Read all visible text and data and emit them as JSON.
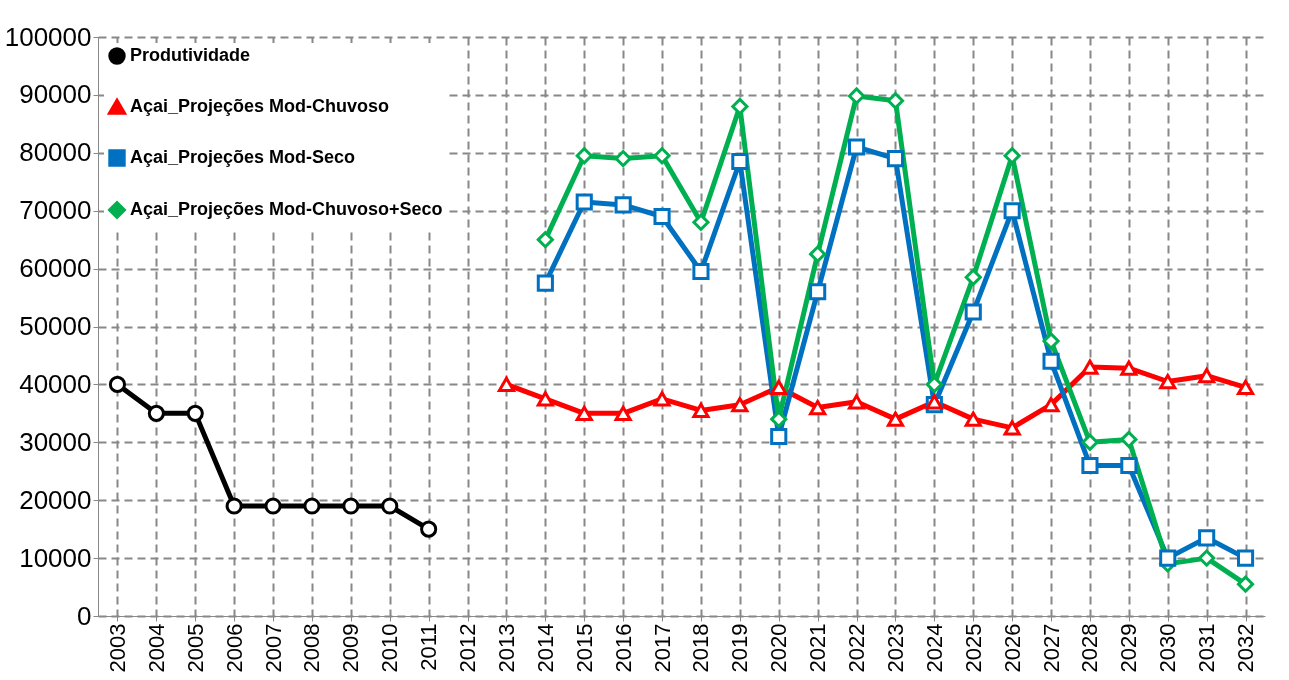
{
  "chart_data": {
    "type": "line",
    "categories": [
      "2003",
      "2004",
      "2005",
      "2006",
      "2007",
      "2008",
      "2009",
      "2010",
      "2011",
      "2012",
      "2013",
      "2014",
      "2015",
      "2016",
      "2017",
      "2018",
      "2019",
      "2020",
      "2021",
      "2022",
      "2023",
      "2024",
      "2025",
      "2026",
      "2027",
      "2028",
      "2029",
      "2030",
      "2031",
      "2032"
    ],
    "series": [
      {
        "name": "Produtividade",
        "color": "#000000",
        "marker": "circle",
        "values": [
          40000,
          35000,
          35000,
          19000,
          19000,
          19000,
          19000,
          19000,
          15000,
          null,
          null,
          null,
          null,
          null,
          null,
          null,
          null,
          null,
          null,
          null,
          null,
          null,
          null,
          null,
          null,
          null,
          null,
          null,
          null,
          null
        ]
      },
      {
        "name": "Açai_Projeções Mod-Chuvoso",
        "color": "#ff0000",
        "marker": "triangle",
        "values": [
          null,
          null,
          null,
          null,
          null,
          null,
          null,
          null,
          null,
          null,
          40000,
          37500,
          35000,
          35000,
          37500,
          35500,
          36500,
          39500,
          36000,
          37000,
          34000,
          37000,
          34000,
          32500,
          36500,
          43000,
          42800,
          40500,
          41500,
          39500
        ]
      },
      {
        "name": "Açai_Projeções Mod-Seco",
        "color": "#0070c0",
        "marker": "square",
        "values": [
          null,
          null,
          null,
          null,
          null,
          null,
          null,
          null,
          null,
          null,
          null,
          57500,
          71500,
          71000,
          69000,
          59500,
          78500,
          31000,
          56000,
          81000,
          79000,
          36500,
          52500,
          70000,
          44000,
          26000,
          26000,
          10000,
          13500,
          10000
        ]
      },
      {
        "name": "Açai_Projeções Mod-Chuvoso+Seco",
        "color": "#00b050",
        "marker": "diamond",
        "values": [
          null,
          null,
          null,
          null,
          null,
          null,
          null,
          null,
          null,
          null,
          null,
          65000,
          79500,
          79000,
          79500,
          68000,
          88000,
          34000,
          62500,
          89800,
          89000,
          40000,
          58500,
          79500,
          47500,
          30000,
          30500,
          9000,
          10000,
          5500
        ]
      }
    ],
    "ylim": [
      0,
      100000
    ],
    "yticks": [
      0,
      10000,
      20000,
      30000,
      40000,
      50000,
      60000,
      70000,
      80000,
      90000,
      100000
    ],
    "grid": true,
    "legend": "top left",
    "line_style": "solid"
  }
}
